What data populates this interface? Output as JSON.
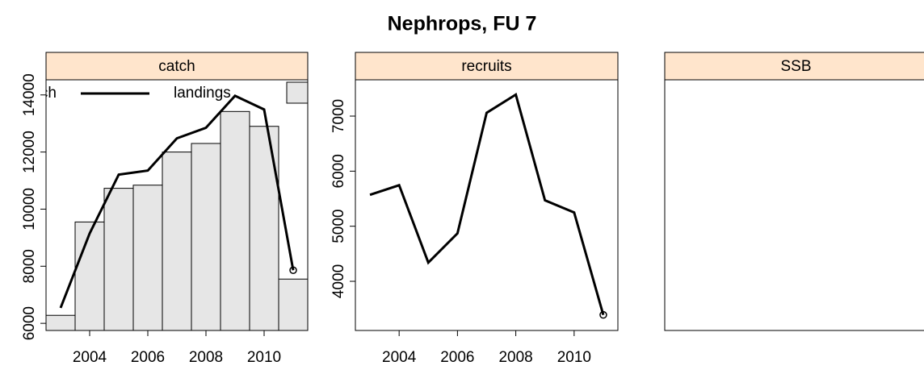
{
  "title": "Nephrops, FU 7",
  "chart_data": [
    {
      "type": "bar",
      "title": "catch",
      "legend": "top",
      "x": [
        2003,
        2004,
        2005,
        2006,
        2007,
        2008,
        2009,
        2010,
        2011
      ],
      "series": [
        {
          "name": "catch",
          "type": "line",
          "color": "#000000",
          "values": [
            6540,
            9150,
            11210,
            11350,
            12480,
            12850,
            13970,
            13490,
            7860
          ]
        },
        {
          "name": "landings",
          "type": "bar",
          "color": "#e6e6e6",
          "values": [
            6280,
            9550,
            10730,
            10840,
            12000,
            12300,
            13420,
            12900,
            7550
          ]
        }
      ],
      "xlim": [
        2002.5,
        2011.5
      ],
      "xticks": [
        2004,
        2006,
        2008,
        2010
      ],
      "ylim": [
        5750,
        14530
      ],
      "yticks": [
        6000,
        8000,
        10000,
        12000,
        14000
      ]
    },
    {
      "type": "line",
      "title": "recruits",
      "x": [
        2003,
        2004,
        2005,
        2006,
        2007,
        2008,
        2009,
        2010,
        2011
      ],
      "series": [
        {
          "name": "recruits",
          "color": "#000000",
          "values": [
            5570,
            5745,
            4340,
            4870,
            7060,
            7390,
            5470,
            5250,
            3390
          ]
        }
      ],
      "xlim": [
        2002.5,
        2011.5
      ],
      "xticks": [
        2004,
        2006,
        2008,
        2010
      ],
      "ylim": [
        3107,
        7659
      ],
      "yticks": [
        4000,
        5000,
        6000,
        7000
      ]
    },
    {
      "type": "line",
      "title": "SSB"
    }
  ]
}
